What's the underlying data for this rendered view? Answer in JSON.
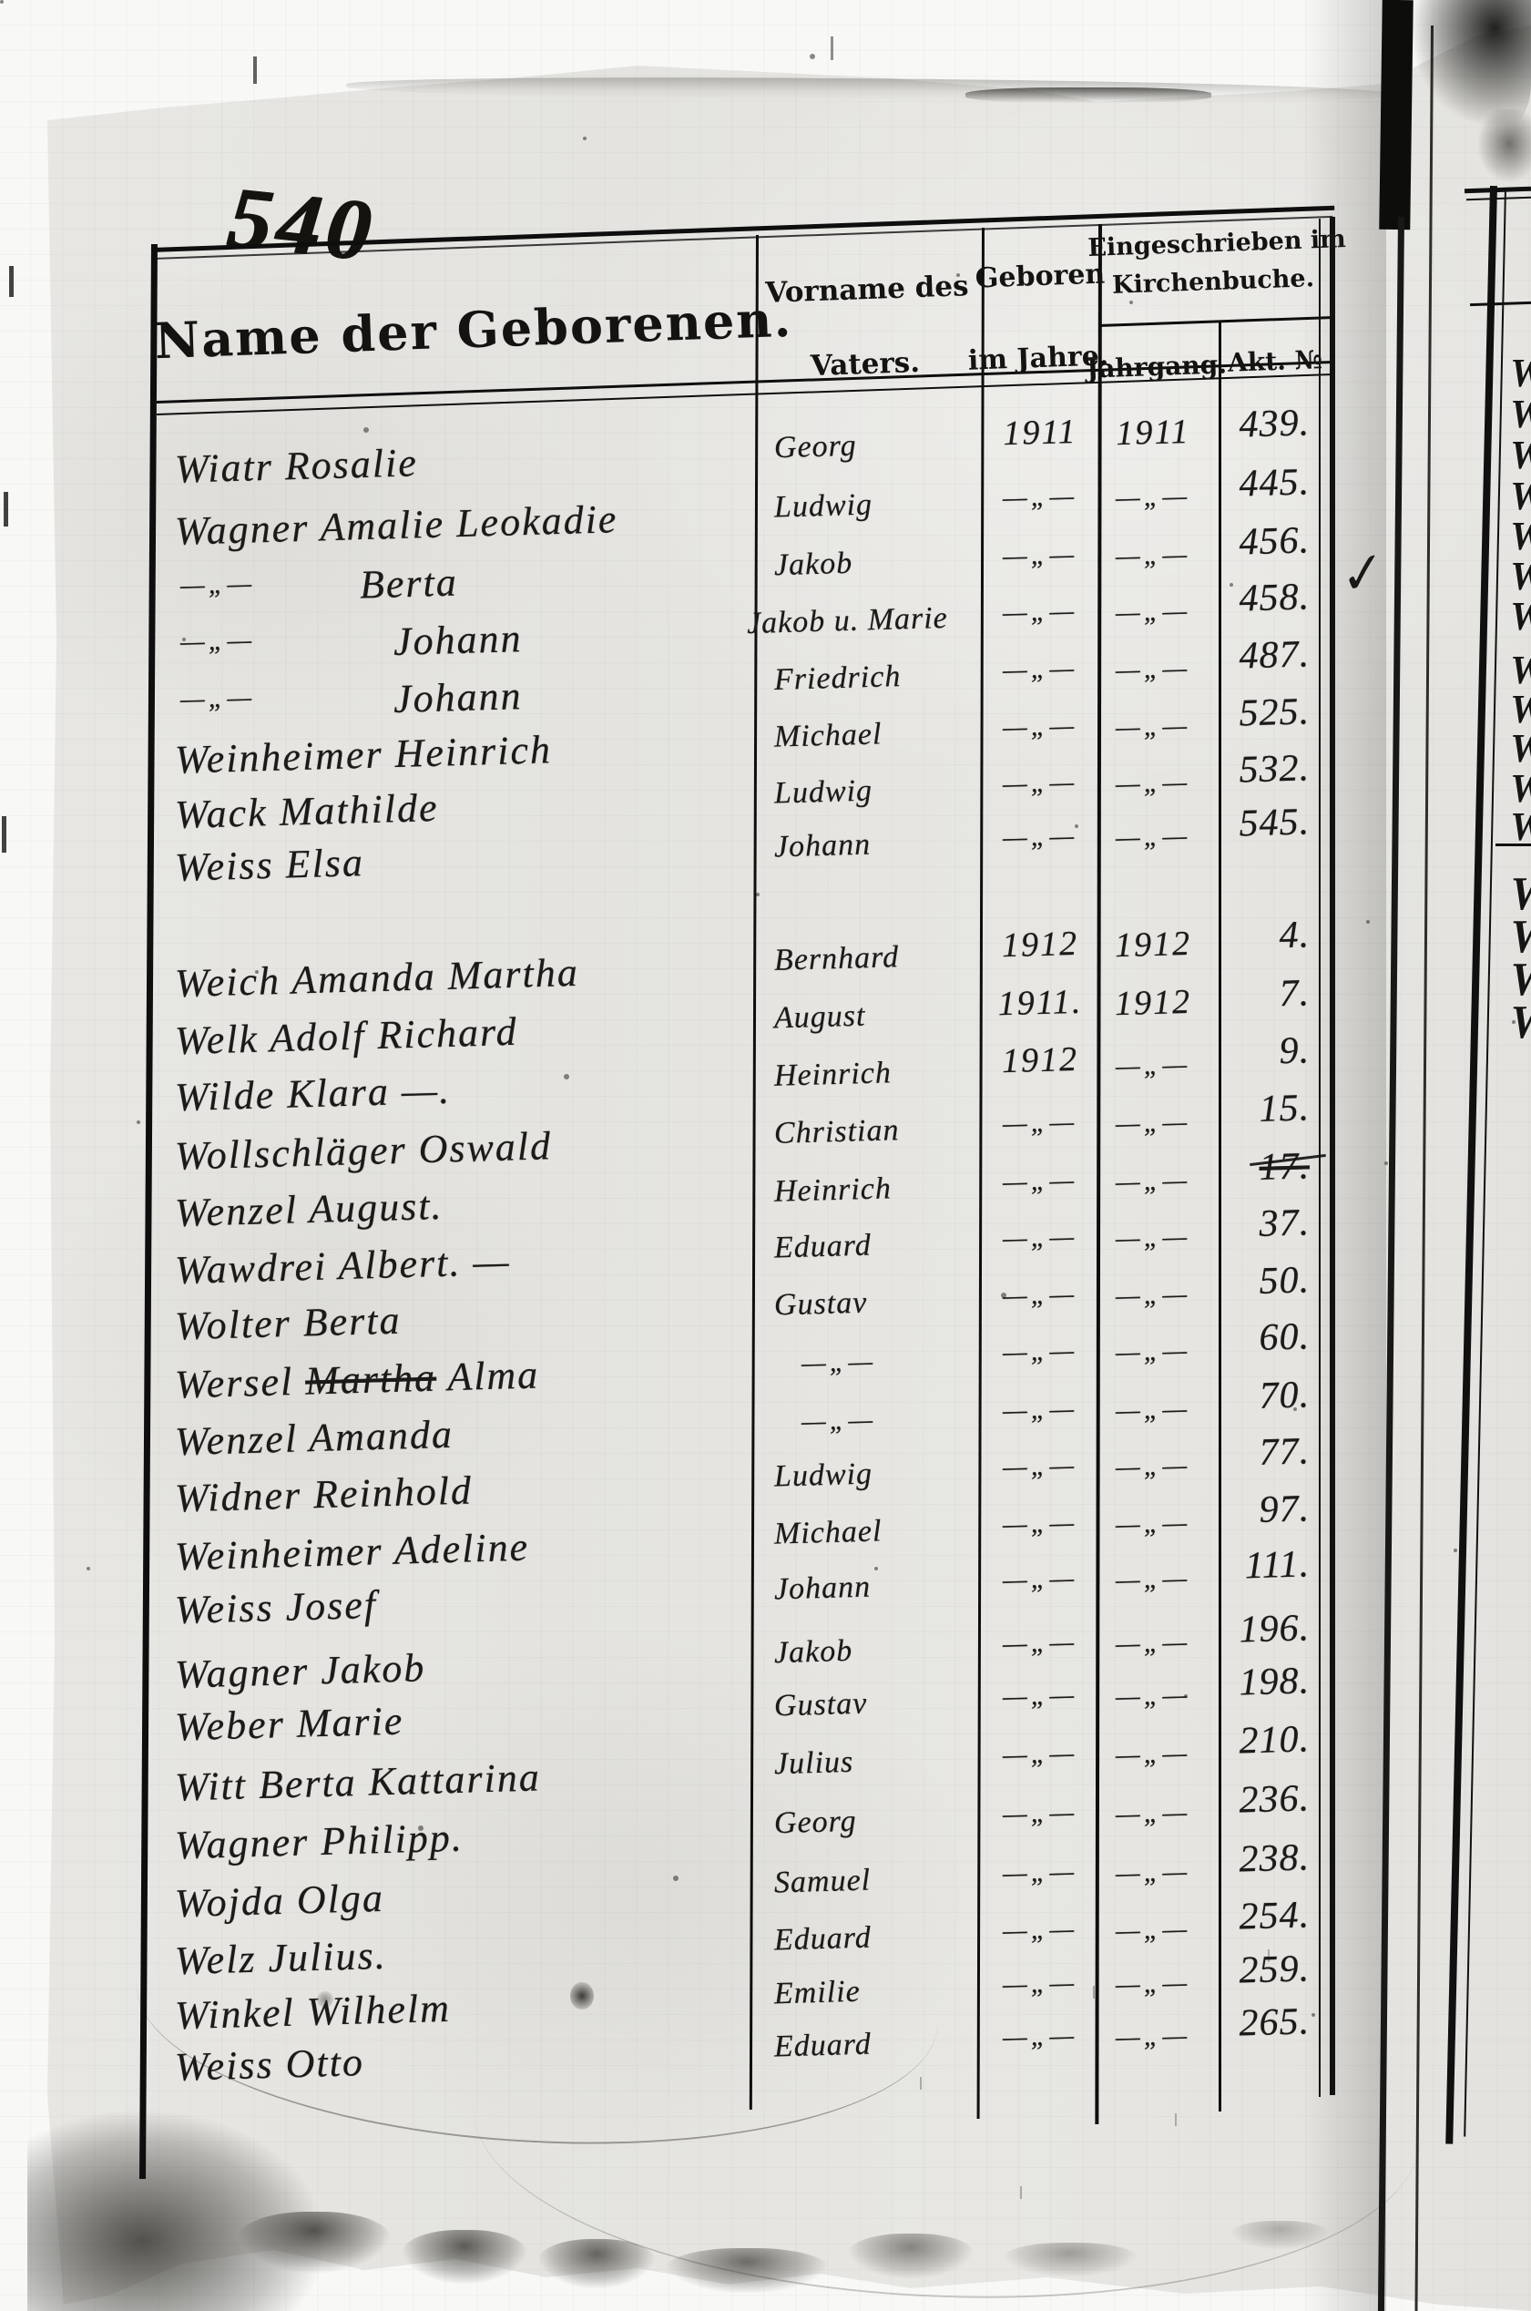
{
  "page": {
    "number": "540"
  },
  "table": {
    "headers": {
      "name": "Name der Geborenen.",
      "father_line1": "Vorname des",
      "father_line2": "Vaters.",
      "born_line1": "Geboren",
      "born_line2": "im Jahre.",
      "registered_line1": "Eingeschrieben im",
      "registered_line2": "Kirchenbuche.",
      "jahrgang": "Jahrgang.",
      "akt": "Akt. №"
    },
    "ditto_mark": "—„—",
    "rows": [
      {
        "name": "Wiatr Rosalie",
        "father": "Georg",
        "born": "1911",
        "reg": "1911",
        "akt": "439."
      },
      {
        "name": "Wagner Amalie Leokadie",
        "father": "Ludwig",
        "born": "—„—",
        "reg": "—„—",
        "akt": "445."
      },
      {
        "name_ditto": "—„—",
        "name": "Berta",
        "father": "Jakob",
        "born": "—„—",
        "reg": "—„—",
        "akt": "456."
      },
      {
        "name_ditto": "—„—",
        "name": "Johann",
        "father": "Jakob u. Marie",
        "born": "—„—",
        "reg": "—„—",
        "akt": "458."
      },
      {
        "name_ditto": "—„—",
        "name": "Johann",
        "father": "Friedrich",
        "born": "—„—",
        "reg": "—„—",
        "akt": "487."
      },
      {
        "name": "Weinheimer Heinrich",
        "father": "Michael",
        "born": "—„—",
        "reg": "—„—",
        "akt": "525."
      },
      {
        "name": "Wack Mathilde",
        "father": "Ludwig",
        "born": "—„—",
        "reg": "—„—",
        "akt": "532."
      },
      {
        "name": "Weiss Elsa",
        "father": "Johann",
        "born": "—„—",
        "reg": "—„—",
        "akt": "545."
      },
      {
        "name": "Weich Amanda Martha",
        "father": "Bernhard",
        "born": "1912",
        "reg": "1912",
        "akt": "4."
      },
      {
        "name": "Welk Adolf Richard",
        "father": "August",
        "born": "1911.",
        "reg": "1912",
        "akt": "7."
      },
      {
        "name": "Wilde Klara —.",
        "father": "Heinrich",
        "born": "1912",
        "reg": "—„—",
        "akt": "9."
      },
      {
        "name": "Wollschläger Oswald",
        "father": "Christian",
        "born": "—„—",
        "reg": "—„—",
        "akt": "15."
      },
      {
        "name": "Wenzel August.",
        "father": "Heinrich",
        "born": "—„—",
        "reg": "—„—",
        "akt": "17.",
        "akt_struck": true
      },
      {
        "name": "Wawdrei Albert. —",
        "father": "Eduard",
        "born": "—„—",
        "reg": "—„—",
        "akt": "37."
      },
      {
        "name": "Wolter Berta",
        "father": "Gustav",
        "born": "—„—",
        "reg": "—„—",
        "akt": "50."
      },
      {
        "name": "Wersel Alma",
        "name_parts": {
          "pre": "Wersel ",
          "struck": "Martha",
          "post": " Alma"
        },
        "father": "—„—",
        "born": "—„—",
        "reg": "—„—",
        "akt": "60."
      },
      {
        "name": "Wenzel Amanda",
        "father": "—„—",
        "born": "—„—",
        "reg": "—„—",
        "akt": "70."
      },
      {
        "name": "Widner Reinhold",
        "father": "Ludwig",
        "born": "—„—",
        "reg": "—„—",
        "akt": "77."
      },
      {
        "name": "Weinheimer Adeline",
        "father": "Michael",
        "born": "—„—",
        "reg": "—„—",
        "akt": "97."
      },
      {
        "name": "Weiss Josef",
        "father": "Johann",
        "born": "—„—",
        "reg": "—„—",
        "akt": "111."
      },
      {
        "name": "Wagner Jakob",
        "father": "Jakob",
        "born": "—„—",
        "reg": "—„—",
        "akt": "196."
      },
      {
        "name": "Weber Marie",
        "father": "Gustav",
        "born": "—„—",
        "reg": "—„—",
        "akt": "198."
      },
      {
        "name": "Witt Berta Kattarina",
        "father": "Julius",
        "born": "—„—",
        "reg": "—„—",
        "akt": "210."
      },
      {
        "name": "Wagner Philipp.",
        "father": "Georg",
        "born": "—„—",
        "reg": "—„—",
        "akt": "236."
      },
      {
        "name": "Wojda Olga",
        "father": "Samuel",
        "born": "—„—",
        "reg": "—„—",
        "akt": "238."
      },
      {
        "name": "Welz Julius.",
        "father": "Eduard",
        "born": "—„—",
        "reg": "—„—",
        "akt": "254."
      },
      {
        "name": "Winkel Wilhelm",
        "father": "Emilie",
        "born": "—„—",
        "reg": "—„—",
        "akt": "259."
      },
      {
        "name": "Weiss Otto",
        "father": "Eduard",
        "born": "—„—",
        "reg": "—„—",
        "akt": "265."
      }
    ]
  },
  "annotations": {
    "checkmark": "✓"
  },
  "adjacent_page": {
    "visible_letters": [
      "W",
      "W",
      "W",
      "W",
      "W",
      "W",
      "W",
      "W",
      "W",
      "W",
      "W",
      "W",
      "W",
      "W",
      "W",
      "W"
    ]
  }
}
